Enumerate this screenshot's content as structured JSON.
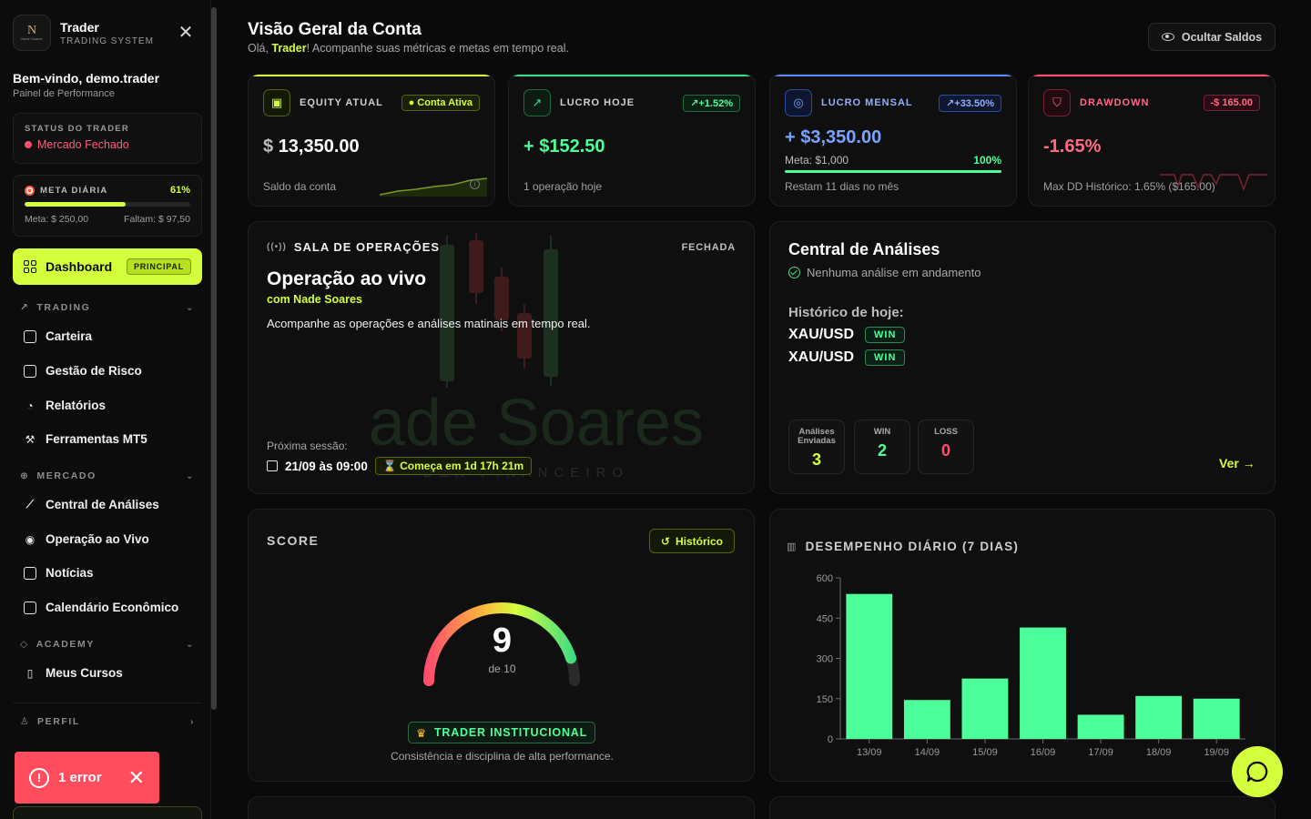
{
  "sidebar": {
    "brand_title": "Trader",
    "brand_sub": "TRADING SYSTEM",
    "logo_text": "Nade Soares",
    "welcome": "Bem-vindo, demo.trader",
    "welcome_sub": "Painel de Performance",
    "status_label": "STATUS DO TRADER",
    "status_value": "Mercado Fechado",
    "meta_label": "META DIÁRIA",
    "meta_percent_text": "61%",
    "meta_progress": 0.61,
    "meta_goal": "Meta: $ 250,00",
    "meta_missing": "Faltam: $ 97,50",
    "dashboard_label": "Dashboard",
    "dashboard_badge": "PRINCIPAL",
    "sections": {
      "trading": "TRADING",
      "mercado": "MERCADO",
      "academy": "ACADEMY",
      "perfil": "PERFIL"
    },
    "items": {
      "carteira": "Carteira",
      "gestao": "Gestão de Risco",
      "relatorios": "Relatórios",
      "ferramentas": "Ferramentas MT5",
      "central": "Central de Análises",
      "operacao": "Operação ao Vivo",
      "noticias": "Notícias",
      "calendario": "Calendário Econômico",
      "cursos": "Meus Cursos"
    },
    "error_toast": "1 error"
  },
  "header": {
    "title": "Visão Geral da Conta",
    "greeting_pre": "Olá, ",
    "user": "Trader",
    "greeting_post": "! Acompanhe suas métricas e metas em tempo real.",
    "hide_button": "Ocultar Saldos"
  },
  "kpis": {
    "equity": {
      "label": "EQUITY ATUAL",
      "badge": "● Conta Ativa",
      "currency": "$",
      "value": "13,350.00",
      "foot": "Saldo da conta",
      "color": "#d4ff3c"
    },
    "lucro_hoje": {
      "label": "LUCRO HOJE",
      "badge": "↗+1.52%",
      "prefix": "+ $",
      "value": "152.50",
      "foot": "1 operação hoje",
      "color": "#3ddc84"
    },
    "lucro_mensal": {
      "label": "LUCRO MENSAL",
      "badge": "↗+33.50%",
      "prefix": "+ $",
      "value": "3,350.00",
      "meta": "Meta: $1,000",
      "meta_percent": "100%",
      "progress": 1.0,
      "foot": "Restam 11 dias no mês",
      "color": "#5b8cff"
    },
    "drawdown": {
      "label": "DRAWDOWN",
      "badge": "-$ 165.00",
      "value": "-1.65%",
      "foot": "Max DD Histórico: 1.65% ($165.00)",
      "color": "#ff4d6d"
    }
  },
  "operations": {
    "label": "SALA DE OPERAÇÕES",
    "status": "FECHADA",
    "title": "Operação ao vivo",
    "host": "com Nade Soares",
    "description": "Acompanhe as operações e análises matinais em tempo real.",
    "next_label": "Próxima sessão:",
    "next_date": "21/09 às 09:00",
    "countdown": "⌛ Começa em 1d 17h 21m",
    "watermark_main": "ade Soares",
    "watermark_sub": "DER FINANCEIRO"
  },
  "analyses": {
    "title": "Central de Análises",
    "subtitle": "Nenhuma análise em andamento",
    "history_label": "Histórico de hoje:",
    "history": [
      {
        "pair": "XAU/USD",
        "result": "WIN"
      },
      {
        "pair": "XAU/USD",
        "result": "WIN"
      }
    ],
    "stats": [
      {
        "label": "Análises Enviadas",
        "value": "3",
        "color": "#d4ff3c"
      },
      {
        "label": "WIN",
        "value": "2",
        "color": "#4dff9a"
      },
      {
        "label": "LOSS",
        "value": "0",
        "color": "#ff4d6d"
      }
    ],
    "link": "Ver →"
  },
  "score": {
    "title": "SCORE",
    "history_button": "Histórico",
    "value": 9,
    "value_text": "9",
    "max_text": "de 10",
    "level": "TRADER INSTITUCIONAL",
    "description": "Consistência e disciplina de alta performance."
  },
  "performance": {
    "title": "DESEMPENHO DIÁRIO (7 DIAS)"
  },
  "chart_data": {
    "type": "bar",
    "categories": [
      "13/09",
      "14/09",
      "15/09",
      "16/09",
      "17/09",
      "18/09",
      "19/09"
    ],
    "values": [
      540,
      145,
      225,
      415,
      90,
      160,
      150
    ],
    "yticks": [
      0,
      150,
      300,
      450,
      600
    ],
    "ylim": [
      0,
      600
    ],
    "color": "#4dff9a",
    "grid": false
  }
}
